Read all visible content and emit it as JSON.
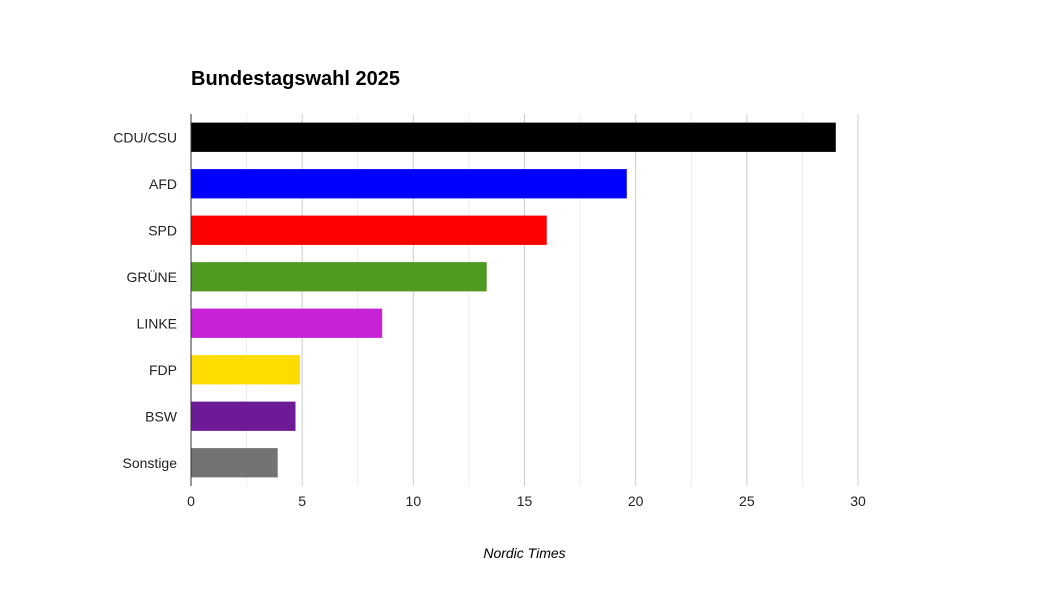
{
  "chart_data": {
    "type": "bar",
    "orientation": "horizontal",
    "title": "Bundestagswahl 2025",
    "xlabel": "",
    "ylabel": "",
    "xlim": [
      0,
      30
    ],
    "x_ticks": [
      0,
      5,
      10,
      15,
      20,
      25,
      30
    ],
    "grid": true,
    "legend": "none",
    "categories": [
      "CDU/CSU",
      "AFD",
      "SPD",
      "GRÜNE",
      "LINKE",
      "FDP",
      "BSW",
      "Sonstige"
    ],
    "values": [
      29.0,
      19.6,
      16.0,
      13.3,
      8.6,
      4.9,
      4.7,
      3.9
    ],
    "colors": [
      "#000000",
      "#0000ff",
      "#ff0000",
      "#509a22",
      "#c822d6",
      "#ffdc00",
      "#6c1a96",
      "#737373"
    ]
  },
  "source": "Nordic Times"
}
